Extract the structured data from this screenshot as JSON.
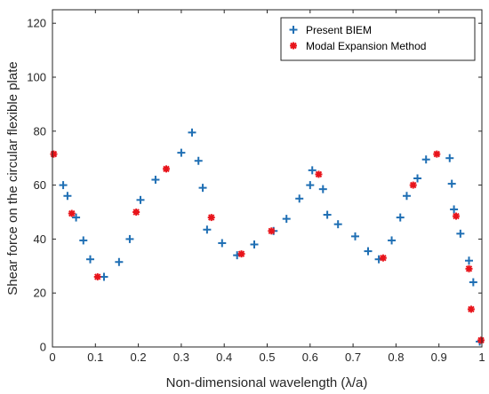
{
  "chart_data": {
    "type": "scatter",
    "xlabel": "Non-dimensional wavelength (λ/a)",
    "ylabel": "Shear force on the circular flexible plate",
    "xlim": [
      0,
      1
    ],
    "ylim": [
      0,
      125
    ],
    "x_ticks": [
      "0",
      "0.1",
      "0.2",
      "0.3",
      "0.4",
      "0.5",
      "0.6",
      "0.7",
      "0.8",
      "0.9",
      "1"
    ],
    "y_ticks": [
      "0",
      "20",
      "40",
      "60",
      "80",
      "100",
      "120"
    ],
    "grid": false,
    "legend_position": "top-right",
    "series": [
      {
        "name": "Present BIEM",
        "marker": "plus",
        "color": "#1f6fb4",
        "x": [
          0.025,
          0.035,
          0.055,
          0.072,
          0.088,
          0.12,
          0.155,
          0.18,
          0.205,
          0.24,
          0.3,
          0.325,
          0.34,
          0.35,
          0.36,
          0.395,
          0.43,
          0.47,
          0.515,
          0.545,
          0.575,
          0.6,
          0.605,
          0.63,
          0.64,
          0.665,
          0.705,
          0.735,
          0.76,
          0.79,
          0.81,
          0.825,
          0.85,
          0.87,
          0.925,
          0.93,
          0.935,
          0.95,
          0.97,
          0.98,
          0.995
        ],
        "y": [
          60,
          56,
          48,
          39.5,
          32.5,
          26,
          31.5,
          40,
          54.5,
          62,
          72,
          79.5,
          69,
          59,
          43.5,
          38.5,
          34,
          38,
          43,
          47.5,
          55,
          60,
          65.5,
          58.5,
          49,
          45.5,
          41,
          35.5,
          32.5,
          39.5,
          48,
          56,
          62.5,
          69.5,
          70,
          60.5,
          51,
          42,
          32,
          24,
          2
        ]
      },
      {
        "name": "Modal Expansion Method",
        "marker": "asterisk",
        "color": "#e8141b",
        "x": [
          0.003,
          0.045,
          0.105,
          0.195,
          0.265,
          0.37,
          0.44,
          0.51,
          0.62,
          0.77,
          0.84,
          0.895,
          0.94,
          0.97,
          0.975,
          0.998
        ],
        "y": [
          71.5,
          49.5,
          26,
          50,
          66,
          48,
          34.5,
          43,
          64,
          33,
          60,
          71.5,
          48.5,
          29,
          14,
          2.5
        ]
      }
    ]
  }
}
